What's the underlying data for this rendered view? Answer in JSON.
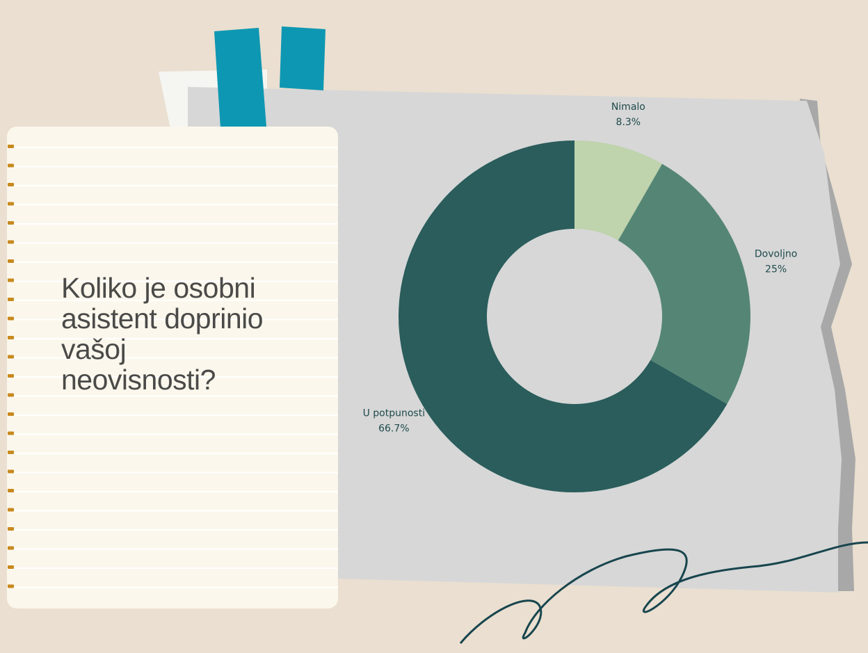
{
  "chart_data": {
    "type": "donut",
    "title": "Koliko je osobni\nasistent doprinio\nvašoj\nneovisnosti?",
    "categories": [
      "Nimalo",
      "Dovoljno",
      "U potpunosti"
    ],
    "values": [
      8.3,
      25,
      66.7
    ],
    "value_labels": [
      "8.3%",
      "25%",
      "66.7%"
    ],
    "colors": [
      "#bfd3ad",
      "#558675",
      "#2a5d5c"
    ]
  }
}
